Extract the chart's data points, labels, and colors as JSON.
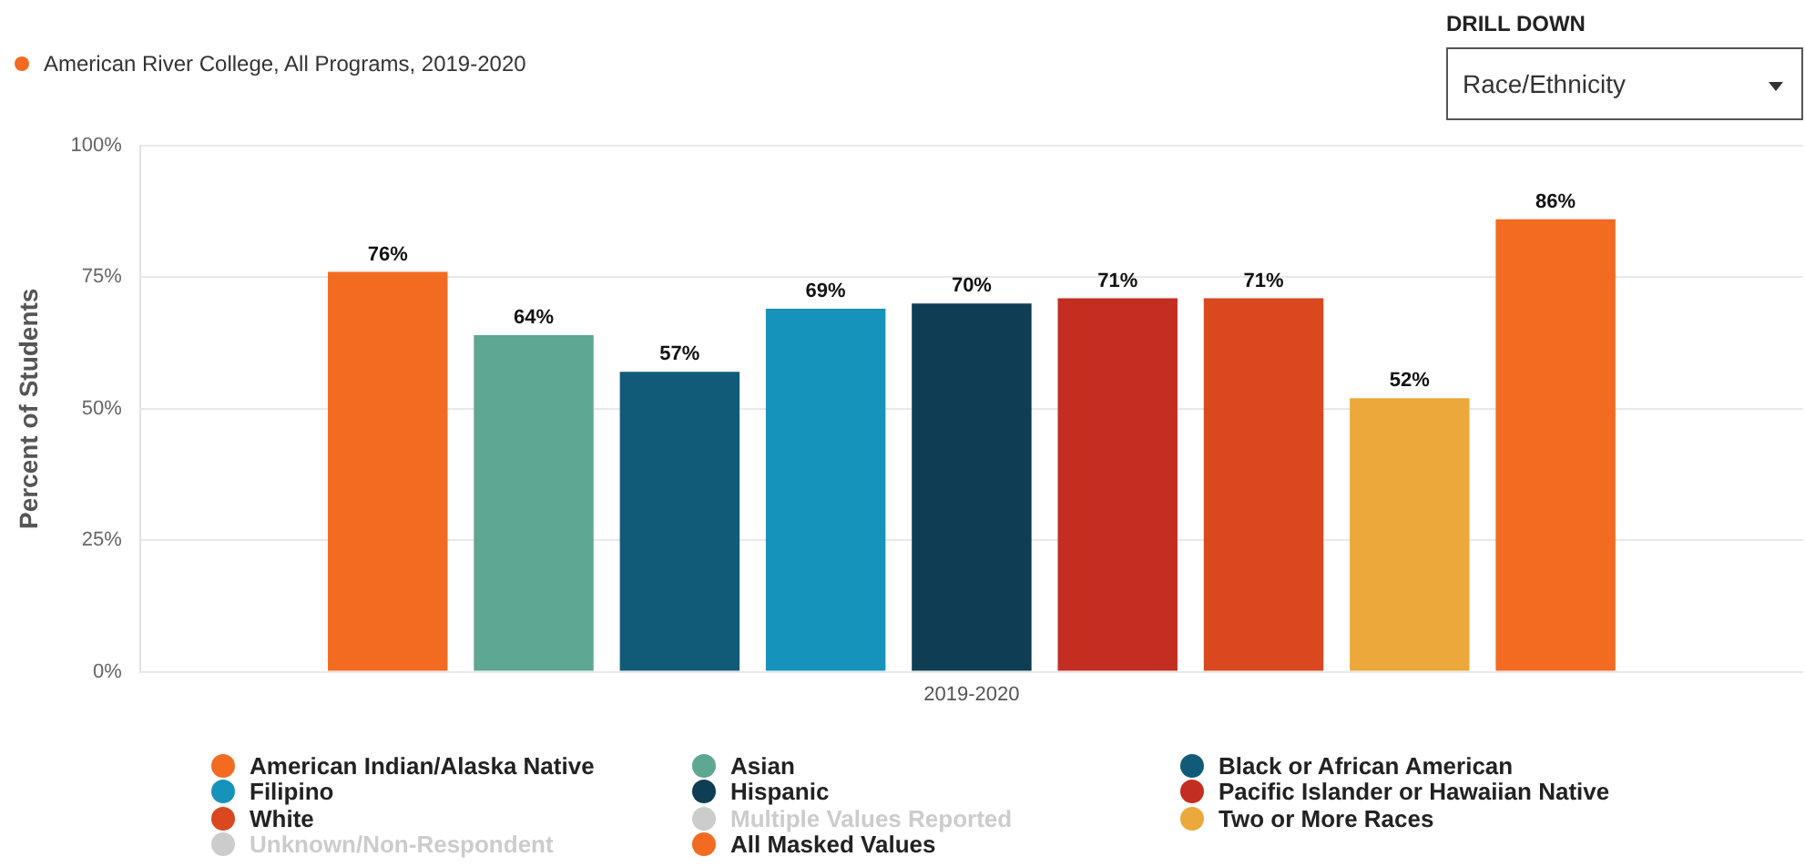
{
  "chart_data": {
    "type": "bar",
    "subtitle": "American River College, All Programs, 2019-2020",
    "ylabel": "Percent of Students",
    "categories": [
      "2019-2020"
    ],
    "series": [
      {
        "name": "American Indian/Alaska Native",
        "color": "#f26b21",
        "values": [
          76
        ],
        "value_labels": [
          "76%"
        ]
      },
      {
        "name": "Asian",
        "color": "#5ea792",
        "values": [
          64
        ],
        "value_labels": [
          "64%"
        ]
      },
      {
        "name": "Black or African American",
        "color": "#115b78",
        "values": [
          57
        ],
        "value_labels": [
          "57%"
        ]
      },
      {
        "name": "Filipino",
        "color": "#1693bb",
        "values": [
          69
        ],
        "value_labels": [
          "69%"
        ]
      },
      {
        "name": "Hispanic",
        "color": "#0e3d54",
        "values": [
          70
        ],
        "value_labels": [
          "70%"
        ]
      },
      {
        "name": "Pacific Islander or Hawaiian Native",
        "color": "#c32e21",
        "values": [
          71
        ],
        "value_labels": [
          "71%"
        ]
      },
      {
        "name": "White",
        "color": "#d9481f",
        "values": [
          71
        ],
        "value_labels": [
          "71%"
        ]
      },
      {
        "name": "Multiple Values Reported",
        "color": "#cccccc",
        "values": [
          null
        ]
      },
      {
        "name": "Two or More Races",
        "color": "#eca83a",
        "values": [
          52
        ],
        "value_labels": [
          "52%"
        ]
      },
      {
        "name": "Unknown/Non-Respondent",
        "color": "#cccccc",
        "values": [
          null
        ]
      },
      {
        "name": "All Masked Values",
        "color": "#f26b21",
        "values": [
          86
        ],
        "value_labels": [
          "86%"
        ]
      }
    ],
    "ylim": [
      0,
      100
    ],
    "yticks": [
      {
        "value": 0,
        "label": "0%"
      },
      {
        "value": 25,
        "label": "25%"
      },
      {
        "value": 50,
        "label": "50%"
      },
      {
        "value": 75,
        "label": "75%"
      },
      {
        "value": 100,
        "label": "100%"
      }
    ],
    "grid": "y",
    "legend": "bottom",
    "annotations": [
      "DRILL DOWN",
      "Race/Ethnicity"
    ]
  }
}
